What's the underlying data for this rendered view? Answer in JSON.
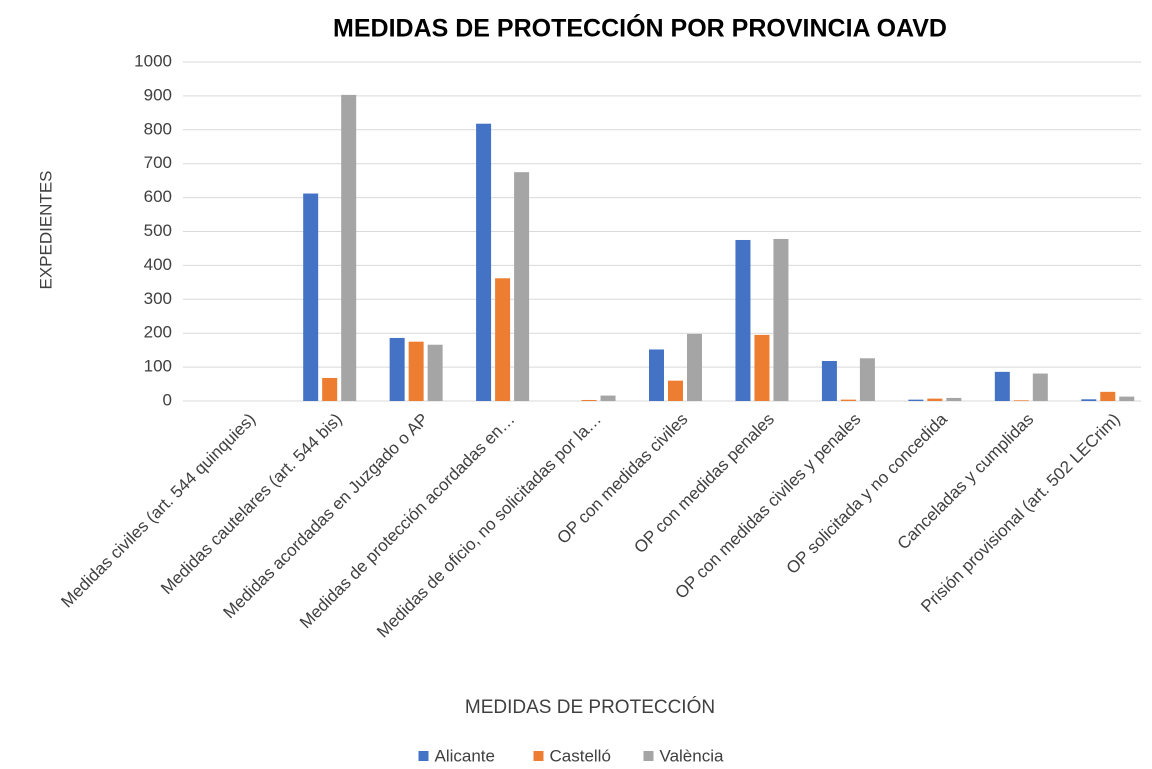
{
  "chart_data": {
    "type": "bar",
    "title": "MEDIDAS DE PROTECCIÓN POR PROVINCIA OAVD",
    "x_label": "MEDIDAS DE PROTECCIÓN",
    "y_label": "EXPEDIENTES",
    "categories": [
      "Medidas civiles (art. 544 quinquies)",
      "Medidas cautelares (art. 544 bis)",
      "Medidas acordadas en Juzgado o AP",
      "Medidas de protección acordadas en…",
      "Medidas de oficio, no solicitadas por la…",
      "OP con medidas civiles",
      "OP con medidas penales",
      "OP con medidas civiles y penales",
      "OP solicitada y no concedida",
      "Canceladas y cumplidas",
      "Prisión provisional (art. 502 LECrim)"
    ],
    "series": [
      {
        "name": "Alicante",
        "color": "#4472c4",
        "values": [
          0,
          612,
          186,
          818,
          0,
          152,
          475,
          118,
          4,
          86,
          5
        ]
      },
      {
        "name": "Castelló",
        "color": "#ed7d31",
        "values": [
          0,
          68,
          175,
          362,
          3,
          60,
          195,
          4,
          7,
          2,
          27
        ]
      },
      {
        "name": "València",
        "color": "#a5a5a5",
        "values": [
          0,
          903,
          166,
          675,
          16,
          198,
          478,
          126,
          9,
          81,
          13
        ]
      }
    ],
    "ylim": [
      0,
      1000
    ],
    "yticks": [
      0,
      100,
      200,
      300,
      400,
      500,
      600,
      700,
      800,
      900,
      1000
    ],
    "grid": true,
    "legend": "bottom"
  }
}
